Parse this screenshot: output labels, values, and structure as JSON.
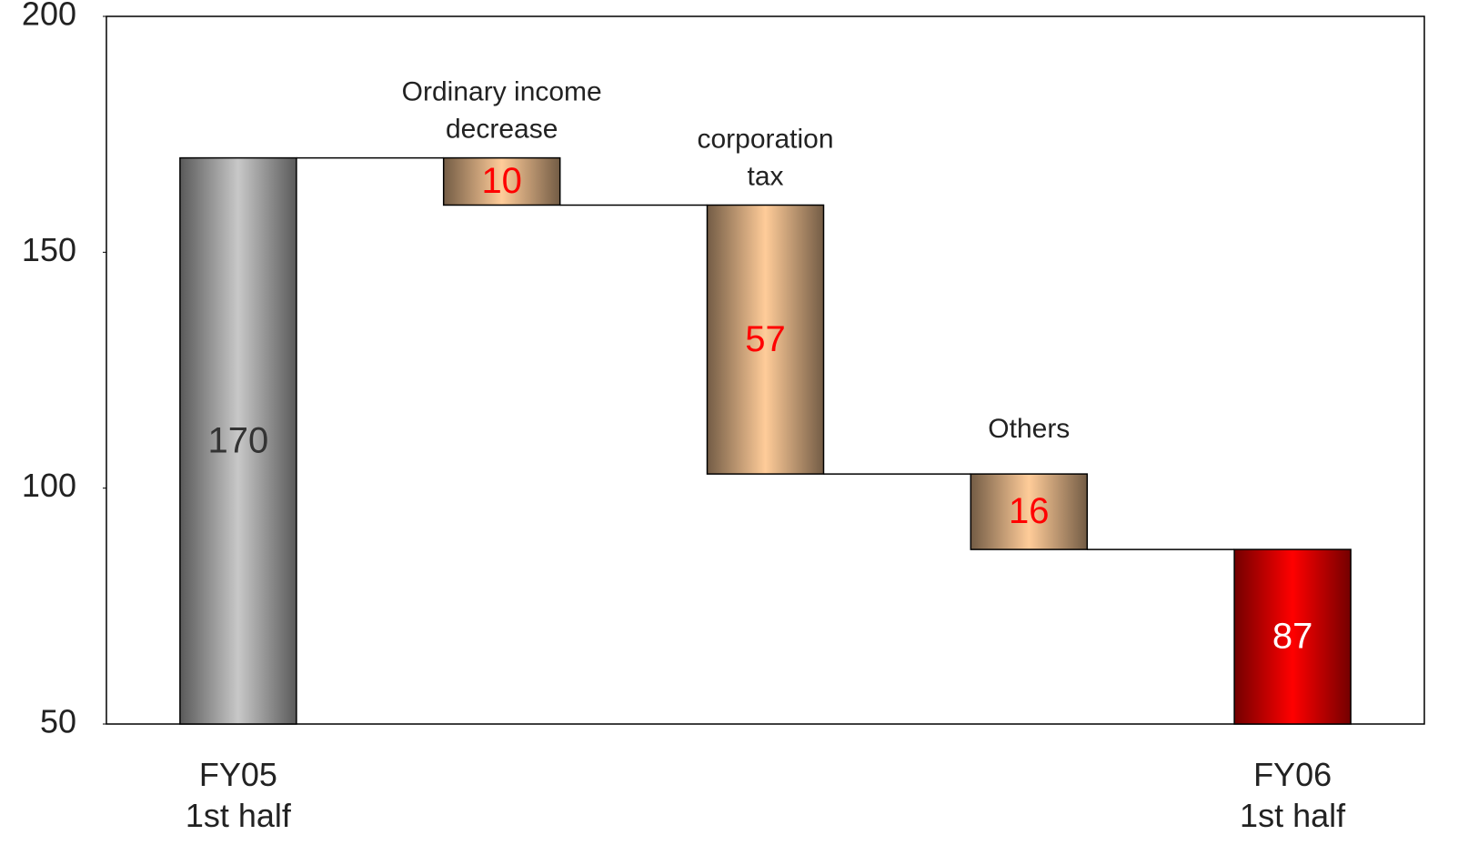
{
  "chart_data": {
    "type": "waterfall",
    "categories": [
      [
        "FY05",
        "1st half"
      ],
      [
        "Ordinary income",
        "decrease"
      ],
      [
        "corporation",
        "tax"
      ],
      [
        "Others"
      ],
      [
        "FY06",
        "1st half"
      ]
    ],
    "values": [
      170,
      10,
      57,
      16,
      87
    ],
    "measure": [
      "total",
      "decrease",
      "decrease",
      "decrease",
      "total"
    ],
    "colors": [
      "#c8c8c8",
      "#ffcc99",
      "#ffcc99",
      "#ffcc99",
      "#ff0000"
    ],
    "label_colors": [
      "#333333",
      "#ff0000",
      "#ff0000",
      "#ff0000",
      "#ffffff"
    ],
    "ylim": [
      50,
      200
    ],
    "yticks": [
      50,
      100,
      150,
      200
    ]
  }
}
